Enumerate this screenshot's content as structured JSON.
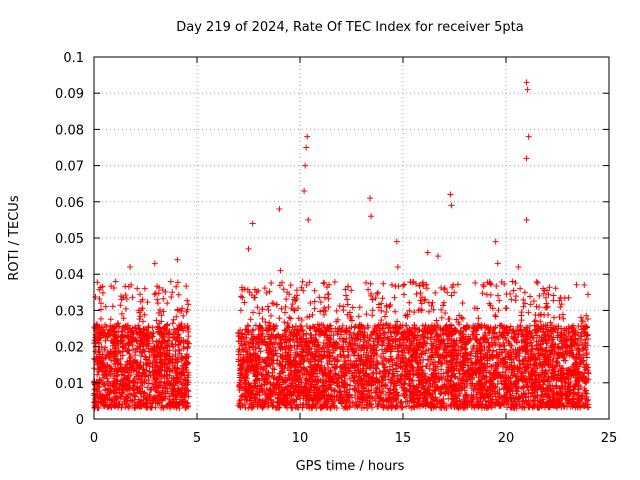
{
  "chart_data": {
    "type": "scatter",
    "title": "Day 219 of 2024, Rate Of TEC Index for receiver 5pta",
    "xlabel": "GPS time / hours",
    "ylabel": "ROTI / TECUs",
    "xlim": [
      0,
      25
    ],
    "ylim": [
      0,
      0.1
    ],
    "x_ticks": [
      "0",
      "5",
      "10",
      "15",
      "20",
      "25"
    ],
    "y_ticks": [
      "0",
      "0.01",
      "0.02",
      "0.03",
      "0.04",
      "0.05",
      "0.06",
      "0.07",
      "0.08",
      "0.09",
      "0.1"
    ],
    "grid": true,
    "marker": "plus",
    "series_color": "#ff0000",
    "data_gap_hours": [
      4.6,
      7.0
    ],
    "segments": [
      {
        "x_start": 0.0,
        "x_end": 4.6,
        "y_min": 0.003,
        "y_max": 0.026
      },
      {
        "x_start": 7.0,
        "x_end": 24.0,
        "y_min": 0.003,
        "y_max": 0.026
      }
    ],
    "peaks": [
      {
        "x": 1.05,
        "y": 0.038
      },
      {
        "x": 1.75,
        "y": 0.042
      },
      {
        "x": 2.1,
        "y": 0.036
      },
      {
        "x": 2.95,
        "y": 0.043
      },
      {
        "x": 3.8,
        "y": 0.035
      },
      {
        "x": 4.05,
        "y": 0.044
      },
      {
        "x": 7.5,
        "y": 0.047
      },
      {
        "x": 7.7,
        "y": 0.054
      },
      {
        "x": 9.0,
        "y": 0.058
      },
      {
        "x": 9.05,
        "y": 0.041
      },
      {
        "x": 10.2,
        "y": 0.063
      },
      {
        "x": 10.25,
        "y": 0.07
      },
      {
        "x": 10.3,
        "y": 0.075
      },
      {
        "x": 10.35,
        "y": 0.078
      },
      {
        "x": 10.4,
        "y": 0.055
      },
      {
        "x": 13.4,
        "y": 0.061
      },
      {
        "x": 13.45,
        "y": 0.056
      },
      {
        "x": 14.7,
        "y": 0.049
      },
      {
        "x": 14.75,
        "y": 0.042
      },
      {
        "x": 16.2,
        "y": 0.046
      },
      {
        "x": 16.7,
        "y": 0.045
      },
      {
        "x": 17.3,
        "y": 0.062
      },
      {
        "x": 17.35,
        "y": 0.059
      },
      {
        "x": 19.5,
        "y": 0.049
      },
      {
        "x": 19.6,
        "y": 0.043
      },
      {
        "x": 20.6,
        "y": 0.042
      },
      {
        "x": 21.0,
        "y": 0.093
      },
      {
        "x": 21.05,
        "y": 0.091
      },
      {
        "x": 21.1,
        "y": 0.078
      },
      {
        "x": 21.0,
        "y": 0.072
      },
      {
        "x": 21.0,
        "y": 0.055
      },
      {
        "x": 21.8,
        "y": 0.036
      },
      {
        "x": 23.8,
        "y": 0.037
      }
    ]
  }
}
